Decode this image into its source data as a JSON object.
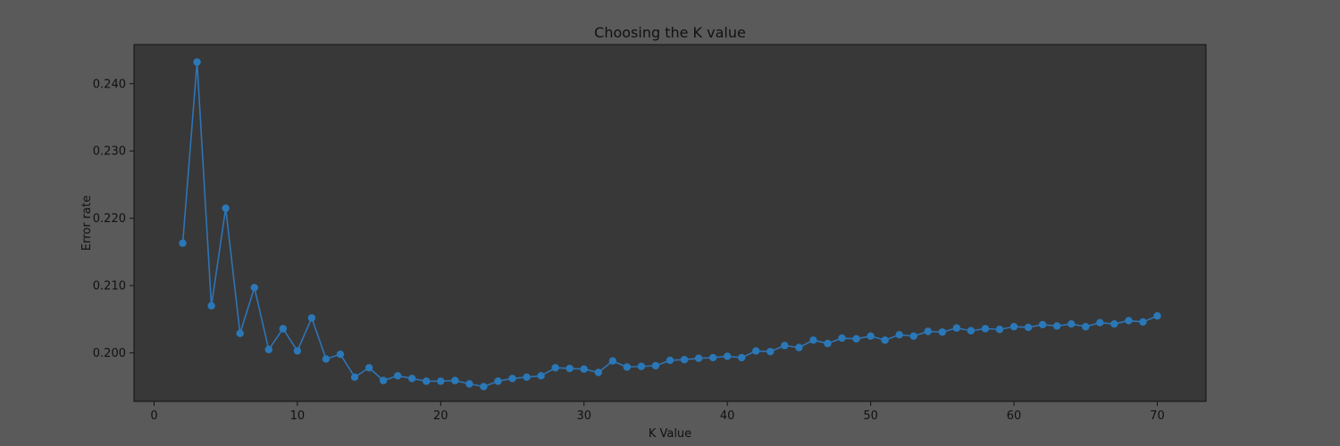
{
  "colors": {
    "figure_bg": "#5a5a5a",
    "plot_bg": "#383838",
    "line": "#2f74b5",
    "marker": "#2a78b8",
    "axis": "#111111"
  },
  "chart_data": {
    "type": "line",
    "title": "Choosing the K value",
    "xlabel": "K Value",
    "ylabel": "Error rate",
    "xlim": [
      -1.4,
      73.4
    ],
    "ylim": [
      0.1928,
      0.2458
    ],
    "grid": false,
    "marker": "circle",
    "xticks": [
      0,
      10,
      20,
      30,
      40,
      50,
      60,
      70
    ],
    "xtick_labels": [
      "0",
      "10",
      "20",
      "30",
      "40",
      "50",
      "60",
      "70"
    ],
    "yticks": [
      0.2,
      0.21,
      0.22,
      0.23,
      0.24
    ],
    "ytick_labels": [
      "0.200",
      "0.210",
      "0.220",
      "0.230",
      "0.240"
    ],
    "series": [
      {
        "x": [
          2,
          3,
          4,
          5,
          6,
          7,
          8,
          9,
          10,
          11,
          12,
          13,
          14,
          15,
          16,
          17,
          18,
          19,
          20,
          21,
          22,
          23,
          24,
          25,
          26,
          27,
          28,
          29,
          30,
          31,
          32,
          33,
          34,
          35,
          36,
          37,
          38,
          39,
          40,
          41,
          42,
          43,
          44,
          45,
          46,
          47,
          48,
          49,
          50,
          51,
          52,
          53,
          54,
          55,
          56,
          57,
          58,
          59,
          60,
          61,
          62,
          63,
          64,
          65,
          66,
          67,
          68,
          69,
          70
        ],
        "values": [
          0.2163,
          0.2432,
          0.207,
          0.2215,
          0.2029,
          0.2097,
          0.2005,
          0.2036,
          0.2003,
          0.2052,
          0.1991,
          0.1998,
          0.1964,
          0.1978,
          0.1959,
          0.1966,
          0.1962,
          0.1958,
          0.1958,
          0.1959,
          0.1954,
          0.195,
          0.1958,
          0.1962,
          0.1964,
          0.1966,
          0.1978,
          0.1977,
          0.1976,
          0.1971,
          0.1988,
          0.1979,
          0.198,
          0.1981,
          0.1989,
          0.199,
          0.1992,
          0.1993,
          0.1995,
          0.1993,
          0.2003,
          0.2002,
          0.2011,
          0.2008,
          0.2019,
          0.2014,
          0.2022,
          0.2021,
          0.2025,
          0.2019,
          0.2027,
          0.2025,
          0.2032,
          0.2031,
          0.2037,
          0.2033,
          0.2036,
          0.2035,
          0.2039,
          0.2038,
          0.2042,
          0.204,
          0.2043,
          0.2039,
          0.2045,
          0.2043,
          0.2048,
          0.2046,
          0.2055
        ]
      }
    ]
  }
}
